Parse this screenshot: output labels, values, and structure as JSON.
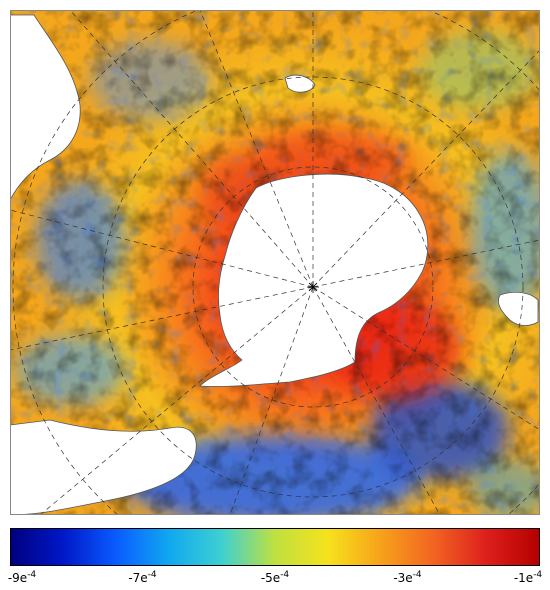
{
  "colorbar": {
    "min": -0.0009,
    "max": -0.0001,
    "colormap": [
      "#00007f",
      "#0018c8",
      "#0a5cff",
      "#10a8f0",
      "#3fd0d0",
      "#bfe040",
      "#f6e21c",
      "#f7a21a",
      "#f26422",
      "#dd1f1c",
      "#b40000"
    ],
    "tick_values": [
      -0.0009,
      -0.0007,
      -0.0005,
      -0.0003,
      -0.0001
    ],
    "tick_labels": [
      {
        "base": "-9e",
        "exp": "-4"
      },
      {
        "base": "-7e",
        "exp": "-4"
      },
      {
        "base": "-5e",
        "exp": "-4"
      },
      {
        "base": "-3e",
        "exp": "-4"
      },
      {
        "base": "-1e",
        "exp": "-4"
      }
    ]
  },
  "map": {
    "projection": "south-polar-stereographic",
    "land_color": "#ffffff",
    "coastline_color": "#555555",
    "graticule_style": "dashed"
  }
}
